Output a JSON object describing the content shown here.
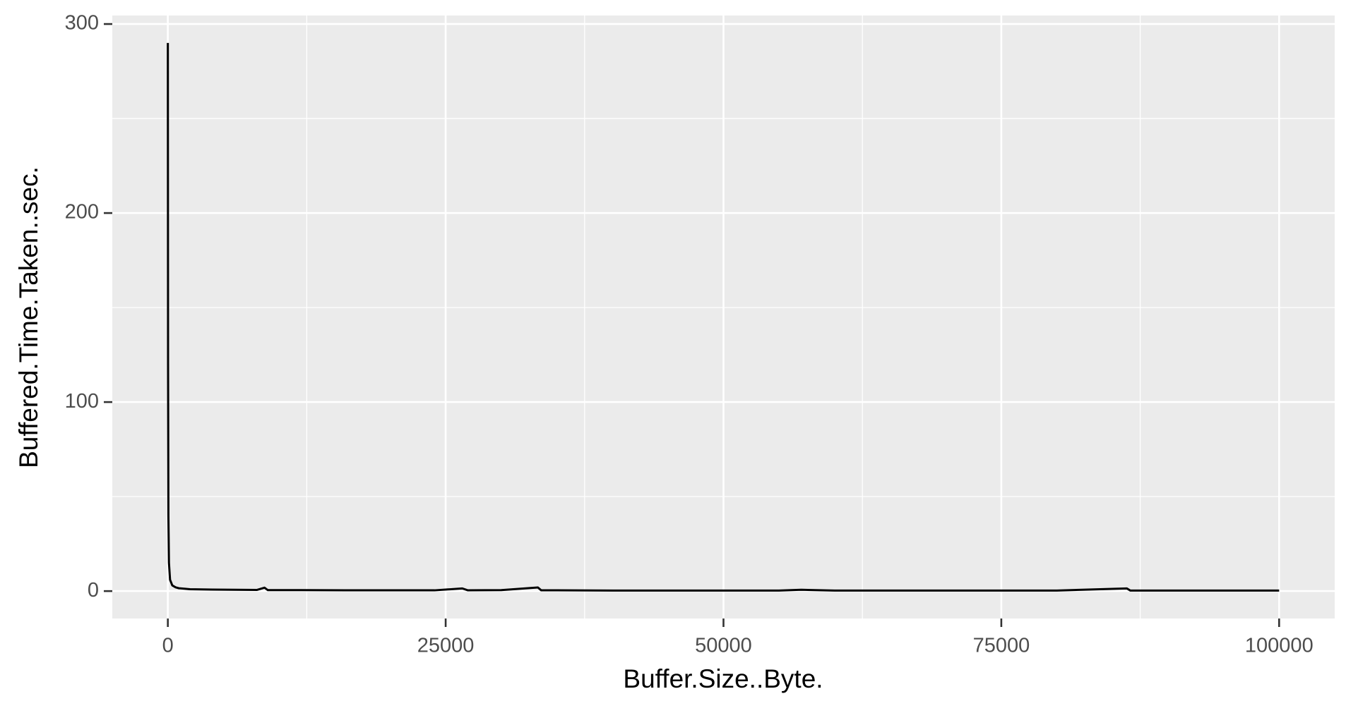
{
  "chart_data": {
    "type": "line",
    "x_label": "Buffer.Size..Byte.",
    "y_label": "Buffered.Time.Taken..sec.",
    "series": [
      {
        "color": "#000000",
        "x": [
          1,
          20,
          50,
          100,
          200,
          400,
          700,
          1000,
          2000,
          4000,
          6000,
          8000,
          8700,
          9000,
          12000,
          16000,
          20000,
          24000,
          26500,
          27000,
          30000,
          33300,
          33600,
          35000,
          40000,
          45000,
          50000,
          55000,
          57000,
          60000,
          65000,
          70000,
          75000,
          80000,
          86300,
          86600,
          90000,
          95000,
          100000
        ],
        "values": [
          290,
          120,
          40,
          15,
          6,
          3,
          2,
          1.5,
          1,
          0.8,
          0.7,
          0.6,
          1.8,
          0.5,
          0.5,
          0.4,
          0.4,
          0.4,
          1.4,
          0.4,
          0.5,
          1.9,
          0.4,
          0.4,
          0.3,
          0.3,
          0.3,
          0.3,
          0.7,
          0.3,
          0.3,
          0.3,
          0.3,
          0.3,
          1.4,
          0.3,
          0.3,
          0.3,
          0.3
        ]
      }
    ],
    "xlim": [
      -4999,
      105000
    ],
    "ylim": [
      -14.5,
      304.5
    ],
    "xticks": [
      0,
      25000,
      50000,
      75000,
      100000
    ],
    "yticks": [
      0,
      100,
      200,
      300
    ],
    "xminor": [
      12500,
      37500,
      62500,
      87500
    ],
    "yminor": [
      50,
      150,
      250
    ],
    "grid": true
  }
}
